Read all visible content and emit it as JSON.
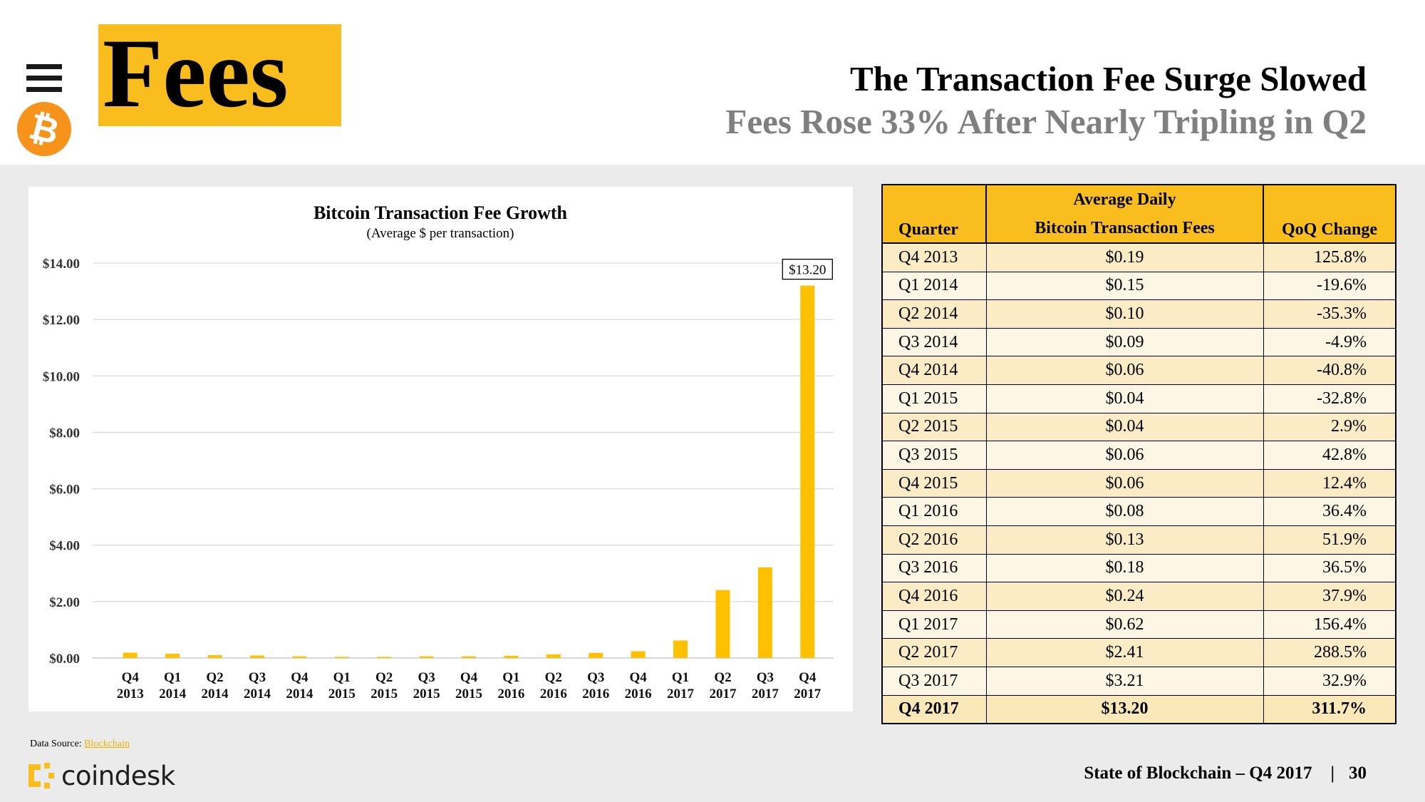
{
  "header": {
    "section_title": "Fees",
    "headline": "The Transaction Fee Surge Slowed",
    "subheadline": "Fees Rose 33% After Nearly Tripling in Q2"
  },
  "icons": {
    "menu": "menu-icon",
    "bitcoin": "bitcoin-logo-icon",
    "coindesk": "coindesk-logo-icon"
  },
  "colors": {
    "accent": "#f9bd1e",
    "bar": "#ffc000",
    "bitcoin": "#f7931a",
    "subtitle_gray": "#7f7f7f"
  },
  "chart_data": {
    "type": "bar",
    "title": "Bitcoin Transaction Fee Growth",
    "subtitle": "(Average $ per transaction)",
    "categories": [
      "Q4 2013",
      "Q1 2014",
      "Q2 2014",
      "Q3 2014",
      "Q4 2014",
      "Q1 2015",
      "Q2 2015",
      "Q3 2015",
      "Q4 2015",
      "Q1 2016",
      "Q2 2016",
      "Q3 2016",
      "Q4 2016",
      "Q1 2017",
      "Q2 2017",
      "Q3 2017",
      "Q4 2017"
    ],
    "values": [
      0.19,
      0.15,
      0.1,
      0.09,
      0.06,
      0.04,
      0.04,
      0.06,
      0.06,
      0.08,
      0.13,
      0.18,
      0.24,
      0.62,
      2.41,
      3.21,
      13.2
    ],
    "ylim": [
      0,
      14
    ],
    "yticks": [
      "$0.00",
      "$2.00",
      "$4.00",
      "$6.00",
      "$8.00",
      "$10.00",
      "$12.00",
      "$14.00"
    ],
    "ytick_values": [
      0,
      2,
      4,
      6,
      8,
      10,
      12,
      14
    ],
    "data_label": {
      "index": 16,
      "text": "$13.20"
    },
    "xlabel": "",
    "ylabel": "",
    "grid": true,
    "legend": "none"
  },
  "table": {
    "headers": {
      "quarter": "Quarter",
      "fees_line1": "Average Daily",
      "fees_line2": "Bitcoin Transaction Fees",
      "change": "QoQ Change"
    },
    "rows": [
      {
        "quarter": "Q4 2013",
        "fee": "$0.19",
        "change": "125.8%"
      },
      {
        "quarter": "Q1 2014",
        "fee": "$0.15",
        "change": "-19.6%"
      },
      {
        "quarter": "Q2 2014",
        "fee": "$0.10",
        "change": "-35.3%"
      },
      {
        "quarter": "Q3 2014",
        "fee": "$0.09",
        "change": "-4.9%"
      },
      {
        "quarter": "Q4 2014",
        "fee": "$0.06",
        "change": "-40.8%"
      },
      {
        "quarter": "Q1 2015",
        "fee": "$0.04",
        "change": "-32.8%"
      },
      {
        "quarter": "Q2 2015",
        "fee": "$0.04",
        "change": "2.9%"
      },
      {
        "quarter": "Q3 2015",
        "fee": "$0.06",
        "change": "42.8%"
      },
      {
        "quarter": "Q4 2015",
        "fee": "$0.06",
        "change": "12.4%"
      },
      {
        "quarter": "Q1 2016",
        "fee": "$0.08",
        "change": "36.4%"
      },
      {
        "quarter": "Q2 2016",
        "fee": "$0.13",
        "change": "51.9%"
      },
      {
        "quarter": "Q3 2016",
        "fee": "$0.18",
        "change": "36.5%"
      },
      {
        "quarter": "Q4 2016",
        "fee": "$0.24",
        "change": "37.9%"
      },
      {
        "quarter": "Q1 2017",
        "fee": "$0.62",
        "change": "156.4%"
      },
      {
        "quarter": "Q2 2017",
        "fee": "$2.41",
        "change": "288.5%"
      },
      {
        "quarter": "Q3 2017",
        "fee": "$3.21",
        "change": "32.9%"
      },
      {
        "quarter": "Q4 2017",
        "fee": "$13.20",
        "change": "311.7%"
      }
    ]
  },
  "source": {
    "label": "Data Source:",
    "link_text": "Blockchain"
  },
  "brand": {
    "name": "coindesk"
  },
  "footer": {
    "report": "State of Blockchain – Q4 2017",
    "separator": "|",
    "page": "30"
  }
}
